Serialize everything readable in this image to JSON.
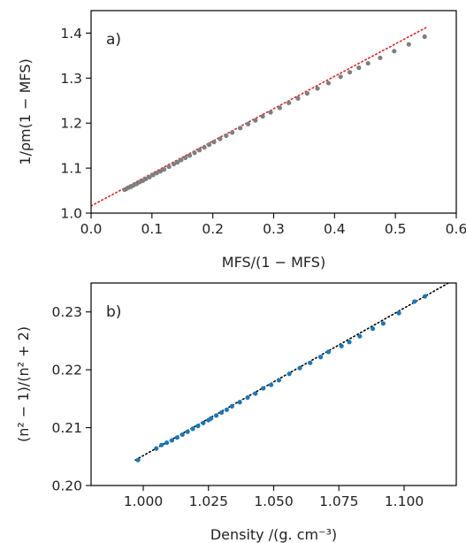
{
  "chart_data": [
    {
      "type": "scatter",
      "panel_label": "a)",
      "xlabel": "MFS/(1 − MFS)",
      "ylabel": "1/ρm(1 − MFS)",
      "xlim": [
        0.0,
        0.6
      ],
      "ylim": [
        1.0,
        1.45
      ],
      "xticks": [
        "0.0",
        "0.1",
        "0.2",
        "0.3",
        "0.4",
        "0.5",
        "0.6"
      ],
      "yticks": [
        "1.0",
        "1.1",
        "1.2",
        "1.3",
        "1.4"
      ],
      "grid": false,
      "colors": {
        "points": "#7f7f7f",
        "fit": "#d62728"
      },
      "fit_line": {
        "style": "dotted",
        "x": [
          0.0,
          0.55
        ],
        "y": [
          1.016,
          1.412
        ]
      },
      "series": [
        {
          "x": [
            0.055,
            0.058,
            0.062,
            0.066,
            0.07,
            0.075,
            0.08,
            0.085,
            0.09,
            0.096,
            0.102,
            0.108,
            0.114,
            0.12,
            0.128,
            0.136,
            0.142,
            0.148,
            0.155,
            0.162,
            0.17,
            0.178,
            0.186,
            0.194,
            0.202,
            0.212,
            0.222,
            0.232,
            0.245,
            0.258,
            0.27,
            0.282,
            0.295,
            0.31,
            0.325,
            0.34,
            0.355,
            0.372,
            0.39,
            0.41,
            0.425,
            0.44,
            0.455,
            0.475,
            0.498,
            0.522,
            0.548
          ],
          "y": [
            1.052,
            1.054,
            1.057,
            1.059,
            1.062,
            1.065,
            1.069,
            1.072,
            1.076,
            1.08,
            1.085,
            1.089,
            1.093,
            1.097,
            1.103,
            1.109,
            1.113,
            1.118,
            1.123,
            1.128,
            1.134,
            1.14,
            1.146,
            1.152,
            1.158,
            1.165,
            1.172,
            1.179,
            1.189,
            1.198,
            1.206,
            1.215,
            1.224,
            1.234,
            1.245,
            1.255,
            1.266,
            1.277,
            1.289,
            1.303,
            1.313,
            1.323,
            1.333,
            1.345,
            1.36,
            1.375,
            1.392
          ]
        }
      ]
    },
    {
      "type": "scatter",
      "panel_label": "b)",
      "xlabel": "Density /(g. cm⁻³)",
      "ylabel": "(n² − 1)/(n² + 2)",
      "xlim": [
        0.98,
        1.12
      ],
      "ylim": [
        0.2,
        0.235
      ],
      "xticks": [
        "1.000",
        "1.025",
        "1.050",
        "1.075",
        "1.100"
      ],
      "yticks": [
        "0.20",
        "0.21",
        "0.22",
        "0.23"
      ],
      "grid": false,
      "colors": {
        "points": "#1f77b4",
        "fit": "#000000"
      },
      "fit_line": {
        "style": "dotted",
        "x": [
          0.997,
          1.117
        ],
        "y": [
          0.2044,
          0.235
        ]
      },
      "series": [
        {
          "x": [
            0.998,
            1.005,
            1.007,
            1.009,
            1.011,
            1.013,
            1.015,
            1.017,
            1.019,
            1.021,
            1.023,
            1.025,
            1.026,
            1.028,
            1.03,
            1.032,
            1.034,
            1.037,
            1.04,
            1.043,
            1.046,
            1.049,
            1.052,
            1.056,
            1.06,
            1.064,
            1.068,
            1.071,
            1.076,
            1.079,
            1.083,
            1.088,
            1.092,
            1.098,
            1.104,
            1.108
          ],
          "y": [
            0.2044,
            0.2064,
            0.207,
            0.2074,
            0.2078,
            0.2083,
            0.2088,
            0.2093,
            0.2098,
            0.2103,
            0.2108,
            0.2113,
            0.2116,
            0.2121,
            0.2126,
            0.2131,
            0.2137,
            0.2144,
            0.2152,
            0.2159,
            0.2168,
            0.2174,
            0.2182,
            0.2193,
            0.2203,
            0.2212,
            0.2222,
            0.2231,
            0.2241,
            0.2248,
            0.2258,
            0.2271,
            0.228,
            0.2298,
            0.2318,
            0.2327
          ]
        }
      ]
    }
  ]
}
